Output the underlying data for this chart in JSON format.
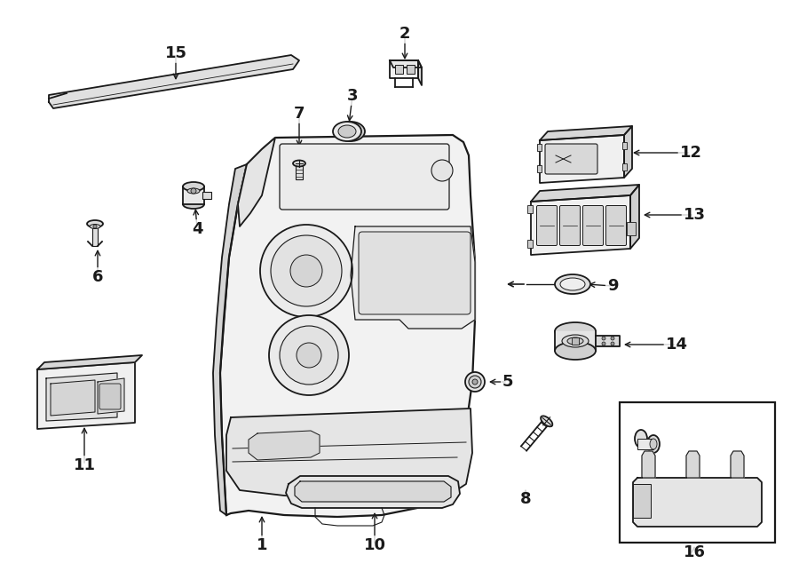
{
  "bg_color": "#ffffff",
  "line_color": "#1a1a1a",
  "fig_width": 9.0,
  "fig_height": 6.61,
  "dpi": 100,
  "label_fontsize": 13,
  "lw": 1.3
}
